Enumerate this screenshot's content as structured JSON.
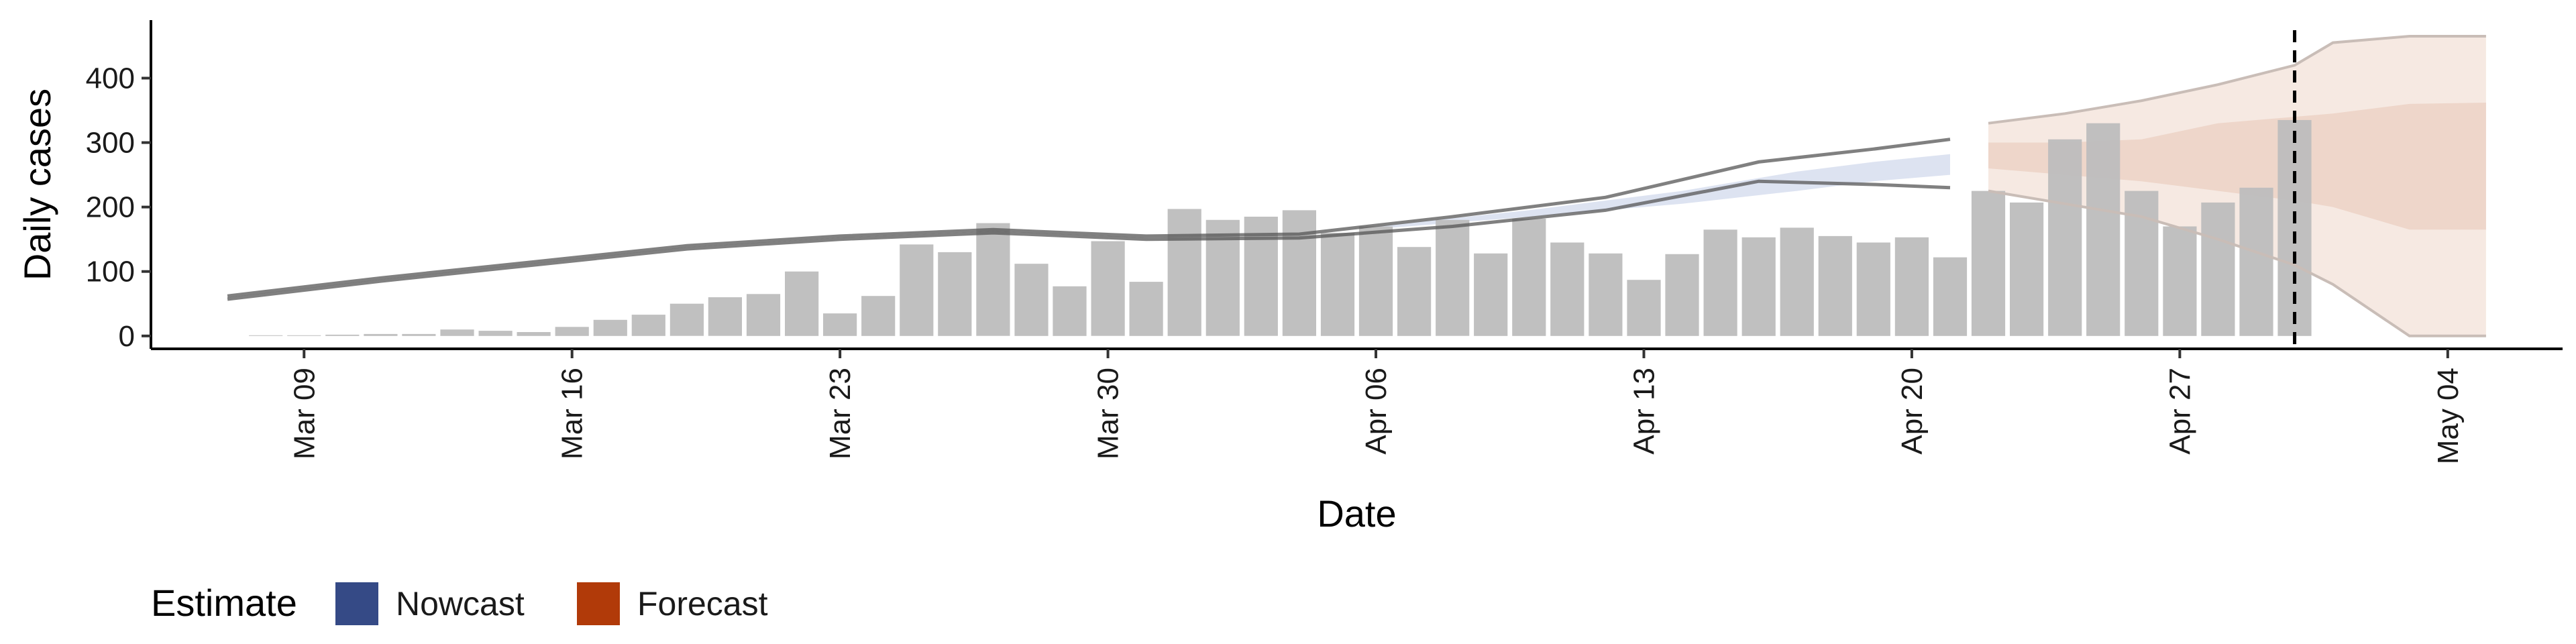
{
  "chart_data": {
    "type": "bar",
    "title": "",
    "xlabel": "Date",
    "ylabel": "Daily cases",
    "ylim": [
      -20,
      490
    ],
    "yticks": [
      0,
      100,
      200,
      300,
      400
    ],
    "grid": false,
    "x_start": "2020-03-08",
    "x_range": [
      "2020-03-05",
      "2020-05-07"
    ],
    "x_tick_labels": [
      "Mar 09",
      "Mar 16",
      "Mar 23",
      "Mar 30",
      "Apr 06",
      "Apr 13",
      "Apr 20",
      "Apr 27",
      "May 04"
    ],
    "x_tick_dates": [
      "2020-03-09",
      "2020-03-16",
      "2020-03-23",
      "2020-03-30",
      "2020-04-06",
      "2020-04-13",
      "2020-04-20",
      "2020-04-27",
      "2020-05-04"
    ],
    "bar_color": "#bdbdbd",
    "daily_cases": [
      1,
      1,
      2,
      3,
      3,
      10,
      8,
      6,
      14,
      25,
      33,
      50,
      60,
      65,
      100,
      35,
      62,
      142,
      130,
      175,
      112,
      77,
      147,
      84,
      197,
      180,
      185,
      195,
      160,
      170,
      138,
      180,
      128,
      182,
      145,
      128,
      87,
      127,
      165,
      153,
      168,
      155,
      145,
      153,
      122,
      225,
      207,
      305,
      330,
      225,
      170,
      207,
      230,
      335
    ],
    "estimate_dates": [
      "2020-03-07",
      "2020-03-11",
      "2020-03-15",
      "2020-03-19",
      "2020-03-23",
      "2020-03-27",
      "2020-03-31",
      "2020-04-04",
      "2020-04-08",
      "2020-04-12",
      "2020-04-16",
      "2020-04-19",
      "2020-04-21"
    ],
    "estimate_upper": [
      62,
      90,
      115,
      140,
      155,
      165,
      155,
      158,
      185,
      215,
      270,
      290,
      305
    ],
    "estimate_lower": [
      57,
      85,
      110,
      135,
      150,
      160,
      150,
      152,
      170,
      195,
      240,
      235,
      230
    ],
    "nowcast_band": {
      "dates": [
        "2020-04-06",
        "2020-04-10",
        "2020-04-14",
        "2020-04-17",
        "2020-04-19",
        "2020-04-21"
      ],
      "upper": [
        170,
        195,
        225,
        255,
        270,
        282
      ],
      "lower": [
        166,
        185,
        205,
        225,
        240,
        250
      ]
    },
    "forecast_dates": [
      "2020-04-22",
      "2020-04-24",
      "2020-04-26",
      "2020-04-28",
      "2020-04-30",
      "2020-05-01",
      "2020-05-03",
      "2020-05-05"
    ],
    "forecast_outer_upper": [
      330,
      345,
      365,
      390,
      420,
      455,
      465,
      465
    ],
    "forecast_outer_lower": [
      225,
      205,
      185,
      150,
      110,
      80,
      0,
      0
    ],
    "forecast_inner_upper": [
      300,
      300,
      305,
      330,
      340,
      345,
      360,
      362
    ],
    "forecast_inner_lower": [
      260,
      250,
      240,
      225,
      210,
      200,
      165,
      165
    ],
    "forecast_date_marker": "2020-04-30",
    "legend": {
      "title": "Estimate",
      "placement": "bottom-left",
      "items": [
        {
          "label": "Nowcast",
          "color": "#354a86"
        },
        {
          "label": "Forecast",
          "color": "#b13a09"
        }
      ]
    },
    "colors": {
      "estimate_line": "#555555",
      "nowcast_fill": "#9fb0d6",
      "forecast_fill": "#e8c7b6"
    }
  }
}
